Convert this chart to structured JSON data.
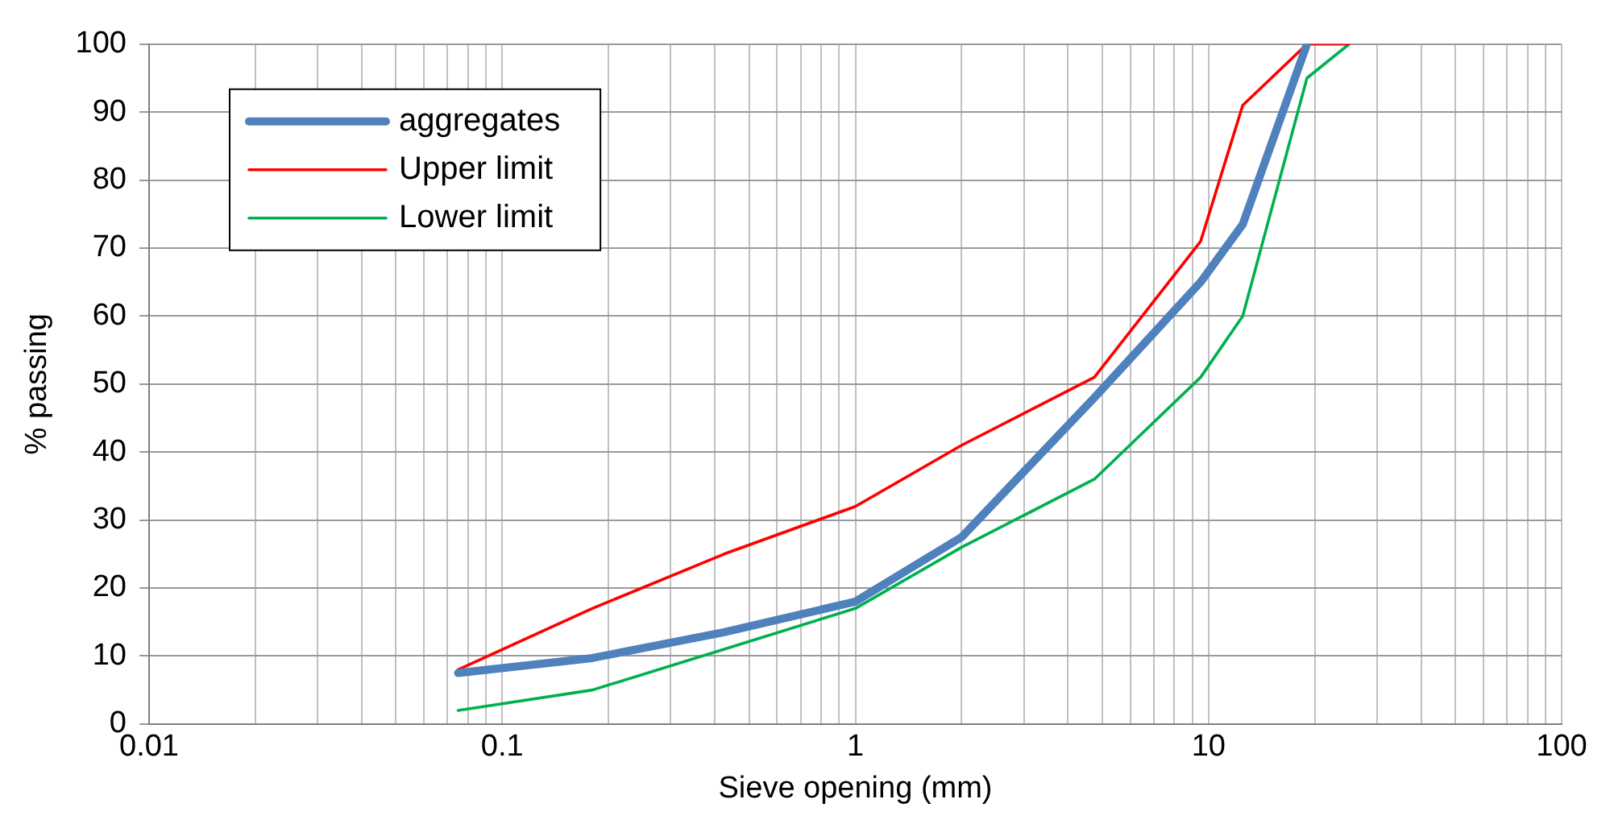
{
  "chart_data": {
    "type": "line",
    "xlabel": "Sieve opening (mm)",
    "ylabel": "% passing",
    "log": "x",
    "grid": true,
    "legend": "top left",
    "marker": "none",
    "line_style": "solid",
    "xlim": [
      0.01,
      100
    ],
    "ylim": [
      0,
      100
    ],
    "xticks": [
      0.01,
      {
        "value": 0.02,
        "label": null
      },
      {
        "value": 0.03,
        "label": null
      },
      {
        "value": 0.04,
        "label": null
      },
      {
        "value": 0.05,
        "label": null
      },
      {
        "value": 0.06,
        "label": null
      },
      {
        "value": 0.07,
        "label": null
      },
      {
        "value": 0.08,
        "label": null
      },
      {
        "value": 0.09,
        "label": null
      },
      0.1,
      {
        "value": 0.2,
        "label": null
      },
      {
        "value": 0.3,
        "label": null
      },
      {
        "value": 0.4,
        "label": null
      },
      {
        "value": 0.5,
        "label": null
      },
      {
        "value": 0.6,
        "label": null
      },
      {
        "value": 0.7,
        "label": null
      },
      {
        "value": 0.8,
        "label": null
      },
      {
        "value": 0.9,
        "label": null
      },
      1,
      {
        "value": 2,
        "label": null
      },
      {
        "value": 3,
        "label": null
      },
      {
        "value": 4,
        "label": null
      },
      {
        "value": 5,
        "label": null
      },
      {
        "value": 6,
        "label": null
      },
      {
        "value": 7,
        "label": null
      },
      {
        "value": 8,
        "label": null
      },
      {
        "value": 9,
        "label": null
      },
      10,
      {
        "value": 20,
        "label": null
      },
      {
        "value": 30,
        "label": null
      },
      {
        "value": 40,
        "label": null
      },
      {
        "value": 50,
        "label": null
      },
      {
        "value": 60,
        "label": null
      },
      {
        "value": 70,
        "label": null
      },
      {
        "value": 80,
        "label": null
      },
      {
        "value": 90,
        "label": null
      },
      100
    ],
    "yticks": [
      0,
      10,
      20,
      30,
      40,
      50,
      60,
      70,
      80,
      90,
      100
    ],
    "series": [
      {
        "name": "aggregates",
        "color": "#4f81bd",
        "x": [
          0.075,
          0.18,
          0.425,
          1,
          2,
          4.75,
          9.5,
          12.5,
          19
        ],
        "values": [
          7.5,
          9.7,
          13.5,
          18,
          27.5,
          48,
          65,
          73.5,
          100
        ]
      },
      {
        "name": "Upper limit",
        "color": "#ff0000",
        "x": [
          0.075,
          0.18,
          0.425,
          1,
          2,
          4.75,
          9.5,
          12.5,
          19,
          25
        ],
        "values": [
          8,
          17,
          25,
          32,
          41,
          51,
          71,
          91,
          100,
          100
        ]
      },
      {
        "name": "Lower limit",
        "color": "#00b050",
        "x": [
          0.075,
          0.18,
          0.425,
          1,
          2,
          4.75,
          9.5,
          12.5,
          19,
          25
        ],
        "values": [
          2,
          5,
          11,
          17,
          26,
          36,
          51,
          60,
          95,
          100
        ]
      }
    ]
  }
}
